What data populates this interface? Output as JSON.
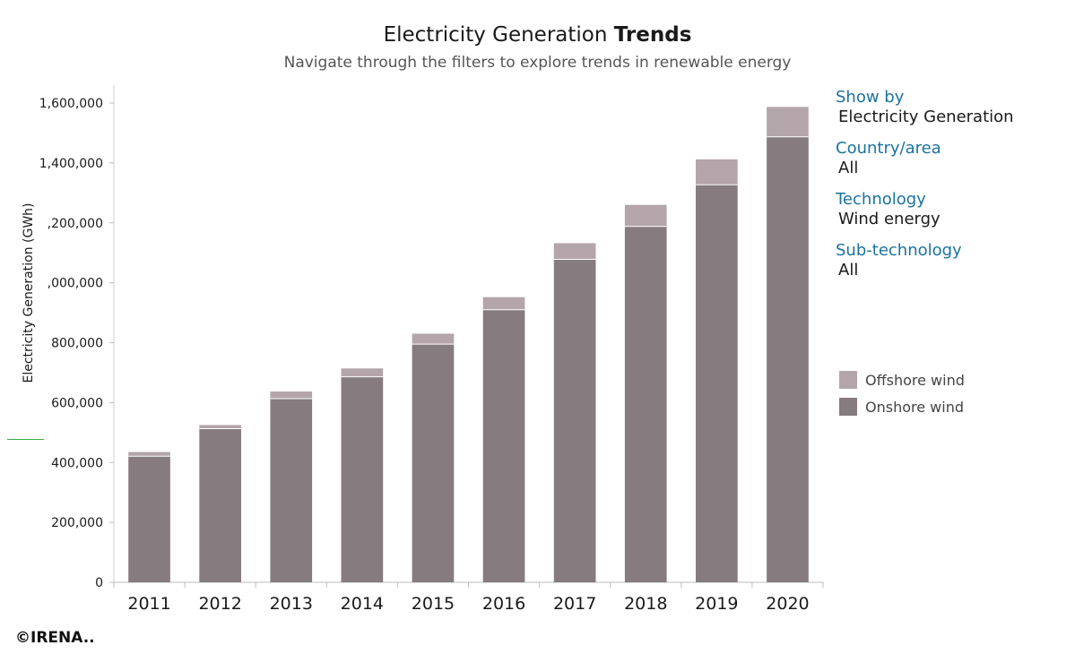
{
  "title_main": "Electricity Generation",
  "title_bold": "Trends",
  "subtitle": "Navigate through the filters to explore trends in renewable energy",
  "filters": [
    {
      "label": "Show by",
      "value": "Electricity Generation"
    },
    {
      "label": "Country/area",
      "value": "All"
    },
    {
      "label": "Technology",
      "value": "Wind energy"
    },
    {
      "label": "Sub-technology",
      "value": "All"
    }
  ],
  "copyright": "©IRENA..",
  "colors": {
    "offshore": "#b3a5aa",
    "onshore": "#867b7e"
  },
  "chart_data": {
    "type": "bar",
    "stacked": true,
    "categories": [
      "2011",
      "2012",
      "2013",
      "2014",
      "2015",
      "2016",
      "2017",
      "2018",
      "2019",
      "2020"
    ],
    "series": [
      {
        "name": "Onshore wind",
        "values": [
          421000,
          513000,
          613000,
          686000,
          795000,
          910000,
          1078000,
          1188000,
          1327000,
          1487000
        ]
      },
      {
        "name": "Offshore wind",
        "values": [
          14000,
          12000,
          24000,
          28000,
          35000,
          42000,
          54000,
          72000,
          85000,
          100000
        ]
      }
    ],
    "ylabel": "Electricity Generation (GWh)",
    "xlabel": "",
    "ylim": [
      0,
      1600000
    ],
    "yticks": [
      "0",
      "200,000",
      "400,000",
      "600,000",
      "800,000",
      ",000,000",
      ",200,000",
      "1,400,000",
      "1,600,000"
    ],
    "legend": "right",
    "grid": false
  }
}
